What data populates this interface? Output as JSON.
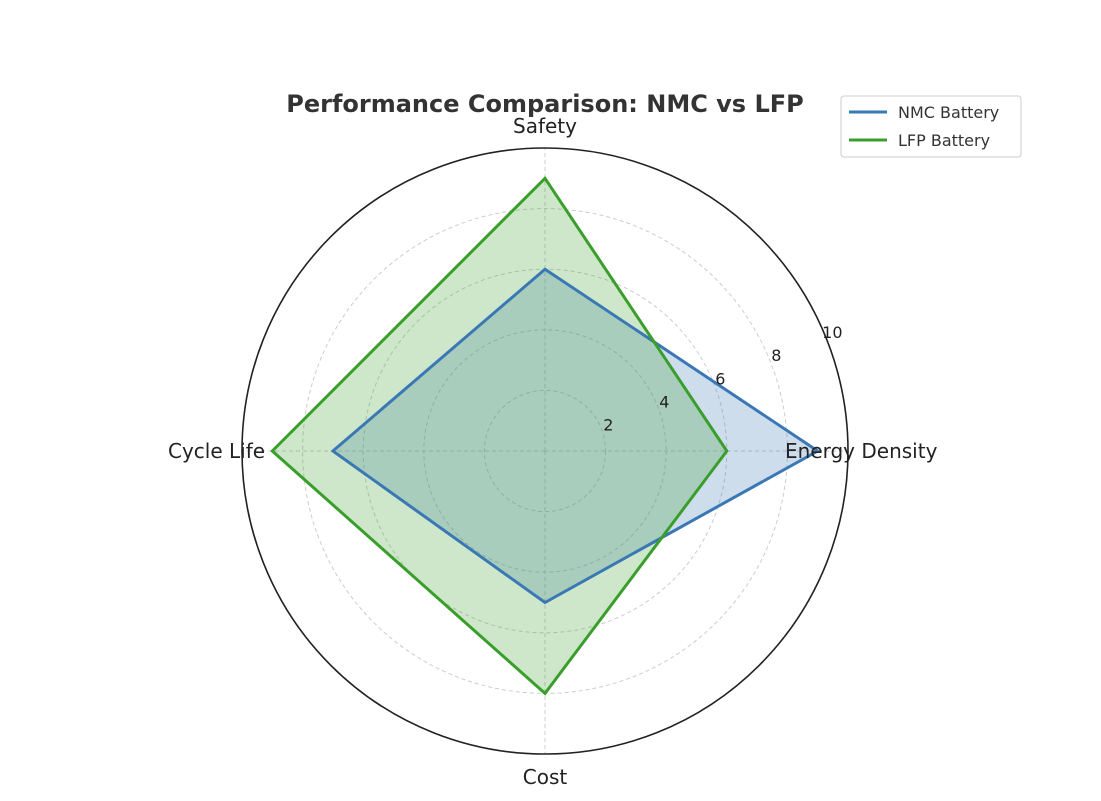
{
  "chart_data": {
    "type": "radar",
    "title": "Performance Comparison: NMC vs LFP",
    "categories": [
      "Energy Density",
      "Safety",
      "Cycle Life",
      "Cost"
    ],
    "rlim": [
      0,
      10
    ],
    "rticks": [
      2,
      4,
      6,
      8,
      10
    ],
    "grid": true,
    "legend_position": "top-right",
    "series": [
      {
        "name": "NMC Battery",
        "values": [
          9,
          6,
          7,
          5
        ],
        "color": "#3a78b5"
      },
      {
        "name": "LFP Battery",
        "values": [
          6,
          9,
          9,
          8
        ],
        "color": "#3a9e2c"
      }
    ]
  }
}
